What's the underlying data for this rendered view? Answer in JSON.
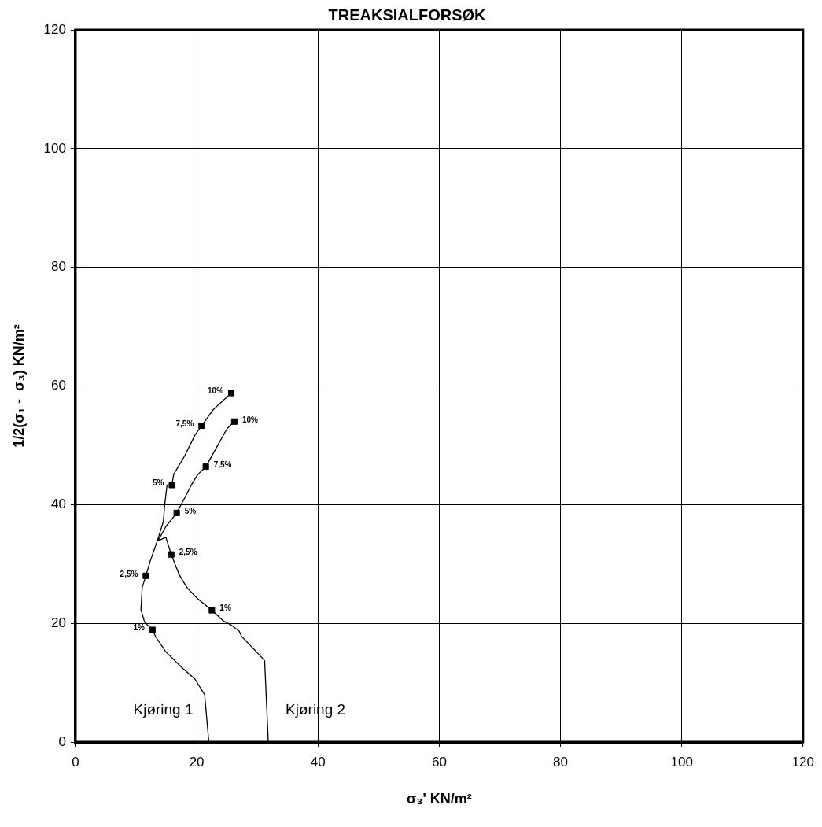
{
  "chart_data": {
    "type": "line",
    "title": "TREAKSIALFORSØK",
    "xlabel": "σ₃' KN/m²",
    "ylabel": "1/2(σ₁ -  σ₃) KN/m²",
    "xlim": [
      0,
      120
    ],
    "xticks": [
      0,
      20,
      40,
      60,
      80,
      100,
      120
    ],
    "ylim": [
      0,
      120
    ],
    "yticks": [
      0,
      20,
      40,
      60,
      80,
      100,
      120
    ],
    "grid": true,
    "legend": false,
    "series": [
      {
        "type": "line",
        "name": "Kjøring 1",
        "color": "#000000",
        "marker": "none",
        "x": [
          22,
          21.3,
          19.7,
          17.5,
          14.9,
          13.2,
          12.7,
          11.4,
          10.8,
          11.0,
          11.6,
          12.3,
          13.6,
          14.5,
          14.7,
          15.1,
          15.9,
          16.2,
          18.0,
          19.7,
          20.8,
          22.8,
          25.7
        ],
        "values": [
          0,
          8.0,
          10.6,
          12.6,
          15.2,
          17.8,
          18.9,
          20.2,
          22.3,
          26.0,
          28.0,
          30.4,
          34.2,
          37.2,
          39.8,
          43.3,
          43.3,
          45.1,
          48.2,
          51.7,
          53.3,
          56.1,
          58.8
        ]
      },
      {
        "type": "line",
        "name": "Kjøring 2",
        "color": "#000000",
        "marker": "none",
        "x": [
          31.8,
          31.2,
          30.5,
          27.4,
          27.0,
          25.7,
          24.4,
          22.5,
          20.1,
          18.4,
          17.1,
          15.8,
          14.9,
          13.6,
          14.9,
          16.7,
          18.0,
          19.1,
          20.2,
          21.5,
          23.2,
          25.0,
          26.2
        ],
        "values": [
          0,
          13.7,
          14.5,
          17.8,
          18.7,
          19.7,
          20.4,
          22.2,
          24.2,
          26.0,
          28.2,
          31.6,
          34.5,
          33.9,
          36.3,
          38.6,
          41.1,
          43.3,
          45.1,
          46.4,
          49.5,
          52.8,
          54.0
        ]
      },
      {
        "type": "scatter",
        "color": "#000000",
        "marker": "square",
        "x": [
          12.7,
          11.6,
          15.9,
          20.8,
          25.7
        ],
        "values": [
          18.9,
          28.0,
          43.3,
          53.3,
          58.8
        ]
      },
      {
        "type": "scatter",
        "color": "#000000",
        "marker": "square",
        "x": [
          22.5,
          15.8,
          16.7,
          21.5,
          26.2
        ],
        "values": [
          22.2,
          31.6,
          38.6,
          46.4,
          54.0
        ]
      }
    ],
    "annotations": [
      {
        "text": "1%",
        "x": 12.7,
        "y": 18.9
      },
      {
        "text": "2,5%",
        "x": 11.6,
        "y": 28.0
      },
      {
        "text": "5%",
        "x": 15.9,
        "y": 43.3
      },
      {
        "text": "7,5%",
        "x": 20.8,
        "y": 53.3
      },
      {
        "text": "10%",
        "x": 25.7,
        "y": 58.8
      },
      {
        "text": "1%",
        "x": 22.5,
        "y": 22.2
      },
      {
        "text": "2,5%",
        "x": 15.8,
        "y": 31.6
      },
      {
        "text": "5%",
        "x": 16.7,
        "y": 38.6
      },
      {
        "text": "7,5%",
        "x": 21.5,
        "y": 46.4
      },
      {
        "text": "10%",
        "x": 26.2,
        "y": 54.0
      }
    ]
  }
}
